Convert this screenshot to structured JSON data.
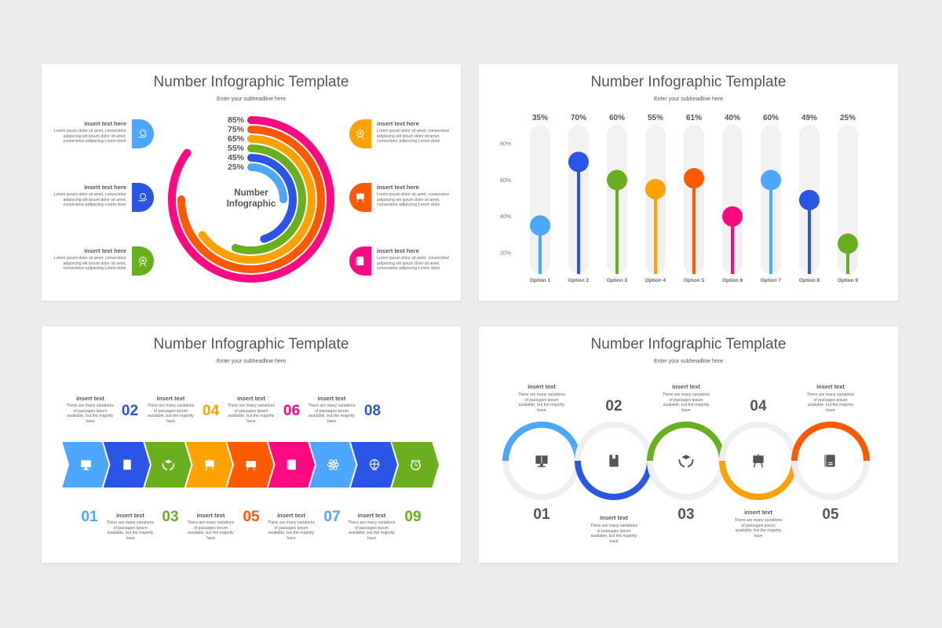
{
  "colors": {
    "light_blue": "#4da6ff",
    "blue": "#2a55e5",
    "green": "#6aaf1e",
    "orange": "#ffa200",
    "red_orange": "#ff5a00",
    "pink": "#ff0a83",
    "grey": "#eeeeee",
    "text": "#555555"
  },
  "slides": [
    {
      "title": "Number Infographic Template",
      "subtitle": "Enter your subheadline here",
      "center_label_1": "Number",
      "center_label_2": "Infographic",
      "rings": [
        {
          "label": "85%",
          "value": 85,
          "color": "#ff0a83"
        },
        {
          "label": "75%",
          "value": 75,
          "color": "#ff5a00"
        },
        {
          "label": "65%",
          "value": 65,
          "color": "#ffa200"
        },
        {
          "label": "55%",
          "value": 55,
          "color": "#6aaf1e"
        },
        {
          "label": "45%",
          "value": 45,
          "color": "#2a55e5"
        },
        {
          "label": "25%",
          "value": 25,
          "color": "#4da6ff"
        }
      ],
      "items": [
        {
          "heading": "insert text here",
          "body": "Lorem ipsum dolor sit amet, consectetur adipiscing elit ipsum dolor sit amet, consectetur adipiscing Lorem dolor",
          "icon": "hand-coin-icon",
          "color": "#4da6ff",
          "side": "left"
        },
        {
          "heading": "insert text here",
          "body": "Lorem ipsum dolor sit amet, consectetur adipiscing elit ipsum dolor sit amet, consectetur adipiscing Lorem dolor",
          "icon": "money-bag-icon",
          "color": "#2a55e5",
          "side": "left"
        },
        {
          "heading": "insert text here",
          "body": "Lorem ipsum dolor sit amet, consectetur adipiscing elit ipsum dolor sit amet, consectetur adipiscing Lorem dolor",
          "icon": "award-icon",
          "color": "#6aaf1e",
          "side": "left"
        },
        {
          "heading": "insert text here",
          "body": "Lorem ipsum dolor sit amet, consectetur adipiscing elit ipsum dolor sit amet, consectetur adipiscing Lorem dolor",
          "icon": "target-icon",
          "color": "#ffa200",
          "side": "right"
        },
        {
          "heading": "insert text here",
          "body": "Lorem ipsum dolor sit amet, consectetur adipiscing elit ipsum dolor sit amet, consectetur adipiscing Lorem dolor",
          "icon": "presentation-icon",
          "color": "#ff5a00",
          "side": "right"
        },
        {
          "heading": "insert text here",
          "body": "Lorem ipsum dolor sit amet, consectetur adipiscing elit ipsum dolor sit amet, consectetur adipiscing Lorem dolor",
          "icon": "certificate-icon",
          "color": "#ff0a83",
          "side": "right"
        }
      ]
    },
    {
      "title": "Number Infographic Template",
      "subtitle": "Enter your subheadline here"
    },
    {
      "title": "Number Infographic Template",
      "subtitle": "Enter your subheadline here",
      "steps": [
        {
          "number": "01",
          "color": "#4da6ff",
          "icon": "monitor-book-icon",
          "heading": "insert text",
          "body": "There are many variations of passages ipsum available, but the majority have"
        },
        {
          "number": "02",
          "color": "#2a55e5",
          "icon": "book-icon",
          "heading": "insert text",
          "body": "There are many variations of passages ipsum available, but the majority have"
        },
        {
          "number": "03",
          "color": "#6aaf1e",
          "icon": "hands-graduation-cap-icon",
          "heading": "insert text",
          "body": "There are many variations of passages ipsum available, but the majority have"
        },
        {
          "number": "04",
          "color": "#ffa200",
          "icon": "easel-icon",
          "heading": "insert text",
          "body": "There are many variations of passages ipsum available, but the majority have"
        },
        {
          "number": "05",
          "color": "#ff5a00",
          "icon": "abc-board-icon",
          "heading": "insert text",
          "body": "There are many variations of passages ipsum available, but the majority have"
        },
        {
          "number": "06",
          "color": "#ff0a83",
          "icon": "grade-report-icon",
          "heading": "insert text",
          "body": "There are many variations of passages ipsum available, but the majority have"
        },
        {
          "number": "07",
          "color": "#4da6ff",
          "icon": "atom-icon",
          "heading": "insert text",
          "body": "There are many variations of passages ipsum available, but the majority have"
        },
        {
          "number": "08",
          "color": "#2a55e5",
          "icon": "globe-icon",
          "heading": "insert text",
          "body": "There are many variations of passages ipsum available, but the majority have"
        },
        {
          "number": "09",
          "color": "#6aaf1e",
          "icon": "alarm-clock-icon",
          "heading": ""
        }
      ]
    },
    {
      "title": "Number Infographic Template",
      "subtitle": "Enter your subheadline here",
      "steps": [
        {
          "number": "01",
          "color": "#4da6ff",
          "half": "top",
          "icon": "monitor-book-icon",
          "heading": "insert text",
          "body": "There are many variations of passages ipsum available, but the majority have"
        },
        {
          "number": "02",
          "color": "#2a55e5",
          "half": "bottom",
          "icon": "book-icon",
          "heading": "insert text",
          "body": "There are many variations of passages ipsum available, but the majority have"
        },
        {
          "number": "03",
          "color": "#6aaf1e",
          "half": "top",
          "icon": "hands-graduation-cap-icon",
          "heading": "insert text",
          "body": "There are many variations of passages ipsum available, but the majority have"
        },
        {
          "number": "04",
          "color": "#ffa200",
          "half": "bottom",
          "icon": "easel-icon",
          "heading": "insert text",
          "body": "There are many variations of passages ipsum available, but the majority have"
        },
        {
          "number": "05",
          "color": "#ff5a00",
          "half": "top",
          "icon": "grade-report-icon",
          "heading": "insert text",
          "body": "There are many variations of passages ipsum available, but the majority have"
        }
      ]
    }
  ],
  "chart_data": {
    "type": "lollipop",
    "categories": [
      "Option 1",
      "Option 2",
      "Option 3",
      "Option 4",
      "Option 5",
      "Option 6",
      "Option 7",
      "Option 8",
      "Option 9"
    ],
    "values": [
      35,
      70,
      60,
      55,
      61,
      40,
      60,
      49,
      25
    ],
    "data_labels": [
      "35%",
      "70%",
      "60%",
      "55%",
      "61%",
      "40%",
      "60%",
      "49%",
      "25%"
    ],
    "colors": [
      "#4da6ff",
      "#2a55e5",
      "#6aaf1e",
      "#ffa200",
      "#ff5a00",
      "#ff0a83",
      "#4da6ff",
      "#2a55e5",
      "#6aaf1e"
    ],
    "y_ticks": [
      "20%",
      "40%",
      "60%",
      "80%"
    ],
    "y_tick_values": [
      20,
      40,
      60,
      80
    ],
    "grid": false
  }
}
